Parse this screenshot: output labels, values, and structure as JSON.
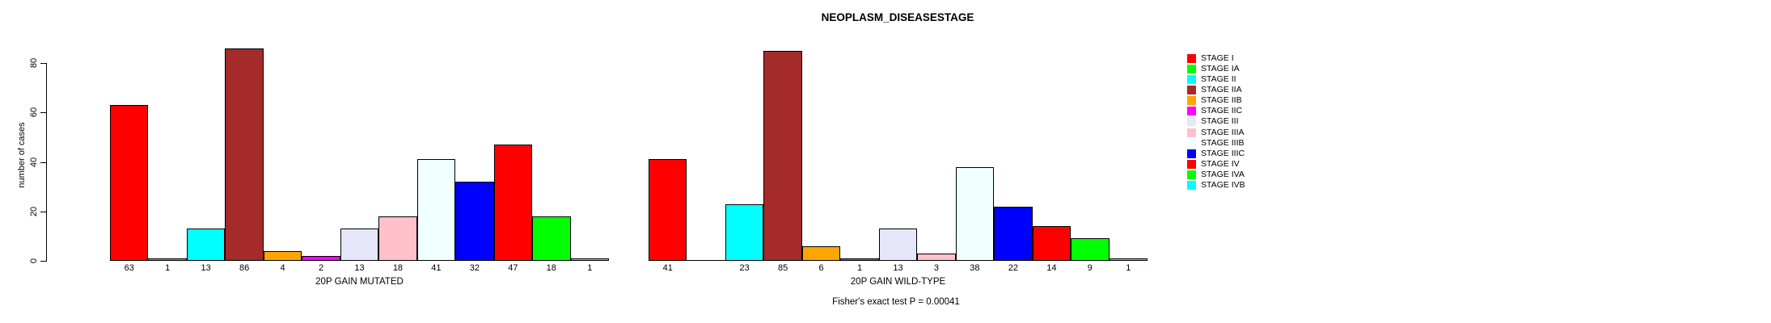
{
  "figure": {
    "title": "NEOPLASM_DISEASESTAGE",
    "y_axis_label": "number of cases",
    "annotation": "Fisher's exact test P = 0.00041"
  },
  "chart_data": {
    "type": "bar",
    "title": "NEOPLASM_DISEASESTAGE",
    "xlabel": "",
    "ylabel": "number of cases",
    "ylim": [
      0,
      86
    ],
    "yticks": [
      0,
      20,
      40,
      60,
      80
    ],
    "grid": false,
    "legend_position": "right",
    "bar_value_labels_shown": true,
    "zero_values_unlabeled": true,
    "categories": [
      "STAGE I",
      "STAGE IA",
      "STAGE II",
      "STAGE IIA",
      "STAGE IIB",
      "STAGE IIC",
      "STAGE III",
      "STAGE IIIA",
      "STAGE IIIB",
      "STAGE IIIC",
      "STAGE IV",
      "STAGE IVA",
      "STAGE IVB"
    ],
    "palette": [
      "#FF0000",
      "#00FF00",
      "#00FFFF",
      "#A52A2A",
      "#FFA500",
      "#FF00FF",
      "#E6E6FA",
      "#FFC0CB",
      "#F0FFFF",
      "#0000FF",
      "#FF0000",
      "#00FF00",
      "#00FFFF"
    ],
    "groups": [
      {
        "label": "20P GAIN MUTATED",
        "values": [
          63,
          1,
          13,
          86,
          4,
          2,
          13,
          18,
          41,
          32,
          47,
          18,
          1
        ]
      },
      {
        "label": "20P GAIN WILD-TYPE",
        "values": [
          41,
          0,
          23,
          85,
          6,
          1,
          13,
          3,
          38,
          22,
          14,
          9,
          1
        ]
      }
    ],
    "annotation": "Fisher's exact test P = 0.00041"
  },
  "legend": {
    "entries": [
      {
        "label": "STAGE I",
        "color": "#FF0000"
      },
      {
        "label": "STAGE IA",
        "color": "#00FF00"
      },
      {
        "label": "STAGE II",
        "color": "#00FFFF"
      },
      {
        "label": "STAGE IIA",
        "color": "#A52A2A"
      },
      {
        "label": "STAGE IIB",
        "color": "#FFA500"
      },
      {
        "label": "STAGE IIC",
        "color": "#FF00FF"
      },
      {
        "label": "STAGE III",
        "color": "#E6E6FA"
      },
      {
        "label": "STAGE IIIA",
        "color": "#FFC0CB"
      },
      {
        "label": "STAGE IIIB",
        "color": "#F0FFFF"
      },
      {
        "label": "STAGE IIIC",
        "color": "#0000FF"
      },
      {
        "label": "STAGE IV",
        "color": "#FF0000"
      },
      {
        "label": "STAGE IVA",
        "color": "#00FF00"
      },
      {
        "label": "STAGE IVB",
        "color": "#00FFFF"
      }
    ]
  }
}
